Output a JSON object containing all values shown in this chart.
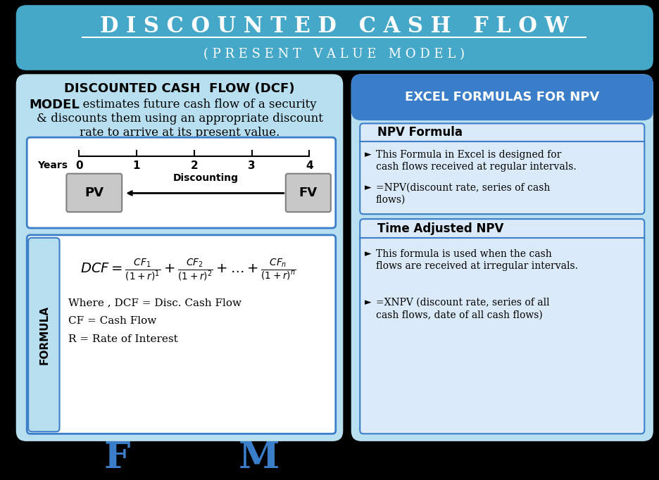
{
  "title_main": "D I S C O U N T E D   C A S H   F L O W",
  "title_sub": "( P R E S E N T   V A L U E   M O D E L )",
  "header_bg": "#45a8c8",
  "main_bg": "#000000",
  "left_panel_bg": "#b8dff0",
  "right_panel_bg": "#b8dff0",
  "left_inner_bg": "#ffffff",
  "right_header_bg": "#3a7dc9",
  "npv_box_bg": "#daeaf8",
  "timeline_box_bg": "#ffffff",
  "formula_label_bg": "#b8dff0",
  "formula_border": "#3a7dc9",
  "dcf_title": "DISCOUNTED CASH  FLOW (DCF)",
  "dcf_subtitle_bold": "MODEL",
  "right_header": "EXCEL FORMULAS FOR NPV",
  "npv_formula_title": "NPV Formula",
  "npv_bullet1a": "This Formula in Excel is designed for",
  "npv_bullet1b": "cash flows received at regular intervals.",
  "npv_bullet2a": "=NPV(discount rate, series of cash",
  "npv_bullet2b": "flows)",
  "time_adj_title": "Time Adjusted NPV",
  "time_bullet1a": "This formula is used when the cash",
  "time_bullet1b": "flows are received at irregular intervals.",
  "time_bullet2a": "=XNPV (discount rate, series of all",
  "time_bullet2b": "cash flows, date of all cash flows)",
  "bottom_f": "F",
  "bottom_m": "M",
  "bottom_color": "#3a7dc9"
}
